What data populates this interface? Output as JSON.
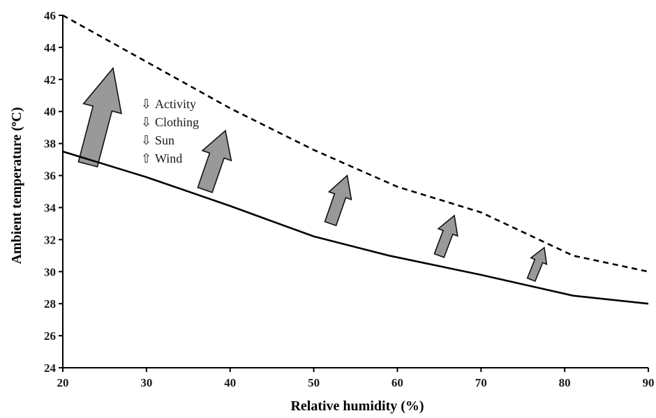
{
  "chart_data": {
    "type": "line",
    "xlabel": "Relative humidity (%)",
    "ylabel_main": "Ambient temperature (",
    "ylabel_sup": "o",
    "ylabel_end": "C)",
    "xlim": [
      20,
      90
    ],
    "ylim": [
      24,
      46
    ],
    "x_ticks": [
      "20",
      "30",
      "40",
      "50",
      "60",
      "70",
      "80",
      "90"
    ],
    "y_ticks": [
      "24",
      "26",
      "28",
      "30",
      "32",
      "34",
      "36",
      "38",
      "40",
      "42",
      "44",
      "46"
    ],
    "grid": false,
    "legend": "none",
    "series": [
      {
        "style": "solid",
        "x": [
          20,
          30,
          40,
          50,
          59,
          70,
          81,
          90
        ],
        "y": [
          37.5,
          35.9,
          34.1,
          32.2,
          31.0,
          29.8,
          28.5,
          28.0
        ]
      },
      {
        "style": "dashed",
        "x": [
          20,
          30,
          40,
          50,
          60,
          70,
          81,
          90
        ],
        "y": [
          46.0,
          43.1,
          40.2,
          37.6,
          35.3,
          33.7,
          31.0,
          30.0
        ]
      }
    ],
    "arrows": [
      {
        "x": 23.0,
        "y_base": 36.7,
        "y_tip": 42.7,
        "size": 1.0
      },
      {
        "x": 37.0,
        "y_base": 35.1,
        "y_tip": 38.8,
        "size": 0.72
      },
      {
        "x": 52.0,
        "y_base": 33.0,
        "y_tip": 36.0,
        "size": 0.5
      },
      {
        "x": 65.0,
        "y_base": 31.0,
        "y_tip": 33.5,
        "size": 0.4
      },
      {
        "x": 76.0,
        "y_base": 29.5,
        "y_tip": 31.5,
        "size": 0.28
      }
    ],
    "annotations": [
      {
        "symbol": "⇩",
        "text": "Activity"
      },
      {
        "symbol": "⇩",
        "text": "Clothing"
      },
      {
        "symbol": "⇩",
        "text": "Sun"
      },
      {
        "symbol": "⇧",
        "text": "Wind"
      }
    ],
    "colors": {
      "line": "#000000",
      "arrow_fill": "#999999",
      "arrow_stroke": "#111111"
    }
  }
}
